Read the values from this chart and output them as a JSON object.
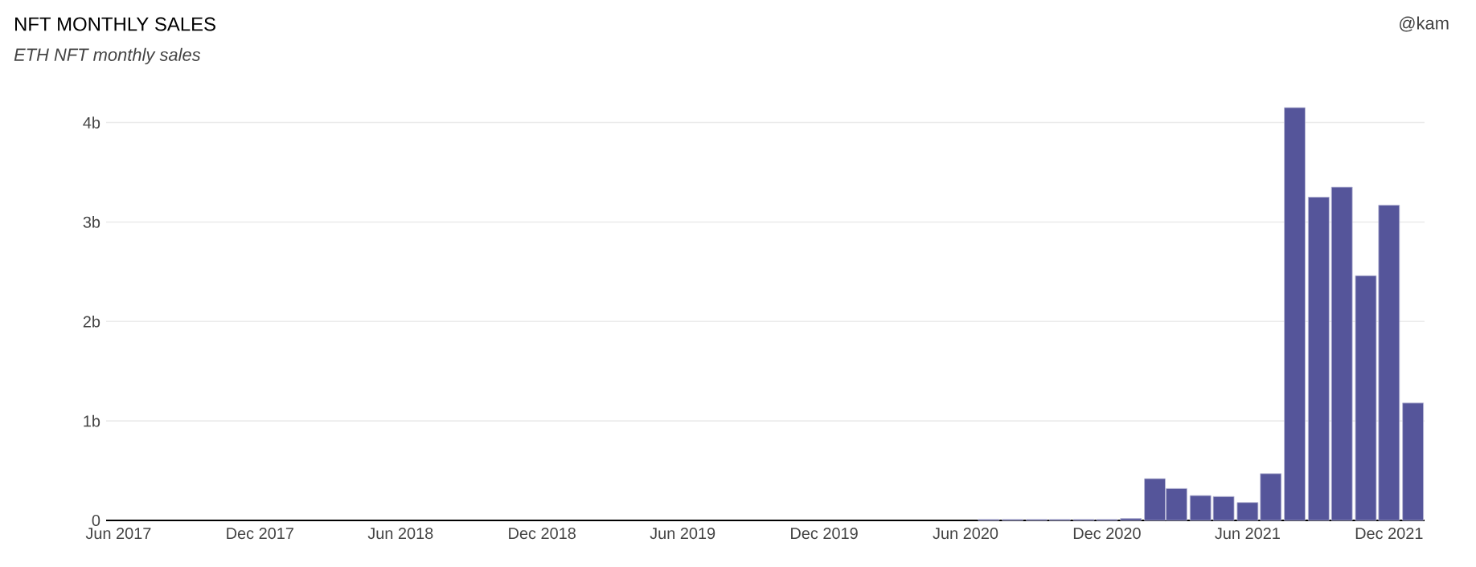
{
  "chart_data": {
    "type": "bar",
    "title": "NFT MONTHLY SALES",
    "subtitle": "ETH NFT monthly sales",
    "annotations": [
      "@kam"
    ],
    "x": [
      "2020-07",
      "2020-08",
      "2020-09",
      "2020-10",
      "2020-11",
      "2020-12",
      "2021-01",
      "2021-02",
      "2021-03",
      "2021-04",
      "2021-05",
      "2021-06",
      "2021-07",
      "2021-08",
      "2021-09",
      "2021-10",
      "2021-11",
      "2021-12",
      "2022-01"
    ],
    "values": [
      0.01,
      0.01,
      0.01,
      0.01,
      0.01,
      0.01,
      0.02,
      0.42,
      0.32,
      0.25,
      0.24,
      0.18,
      0.47,
      4.15,
      3.25,
      3.35,
      2.46,
      3.17,
      1.18
    ],
    "color": "#55559a",
    "xlim": [
      "2017-05-16",
      "2022-01-16"
    ],
    "xticks": [
      {
        "value": "2017-06",
        "label": "Jun 2017"
      },
      {
        "value": "2017-12",
        "label": "Dec 2017"
      },
      {
        "value": "2018-06",
        "label": "Jun 2018"
      },
      {
        "value": "2018-12",
        "label": "Dec 2018"
      },
      {
        "value": "2019-06",
        "label": "Jun 2019"
      },
      {
        "value": "2019-12",
        "label": "Dec 2019"
      },
      {
        "value": "2020-06",
        "label": "Jun 2020"
      },
      {
        "value": "2020-12",
        "label": "Dec 2020"
      },
      {
        "value": "2021-06",
        "label": "Jun 2021"
      },
      {
        "value": "2021-12",
        "label": "Dec 2021"
      }
    ],
    "yticks": [
      0,
      {
        "value": 1,
        "label": "1b"
      },
      {
        "value": 2,
        "label": "2b"
      },
      {
        "value": 3,
        "label": "3b"
      },
      {
        "value": 4,
        "label": "4b"
      }
    ],
    "ylim": [
      0,
      4.15
    ],
    "grid": "y"
  }
}
